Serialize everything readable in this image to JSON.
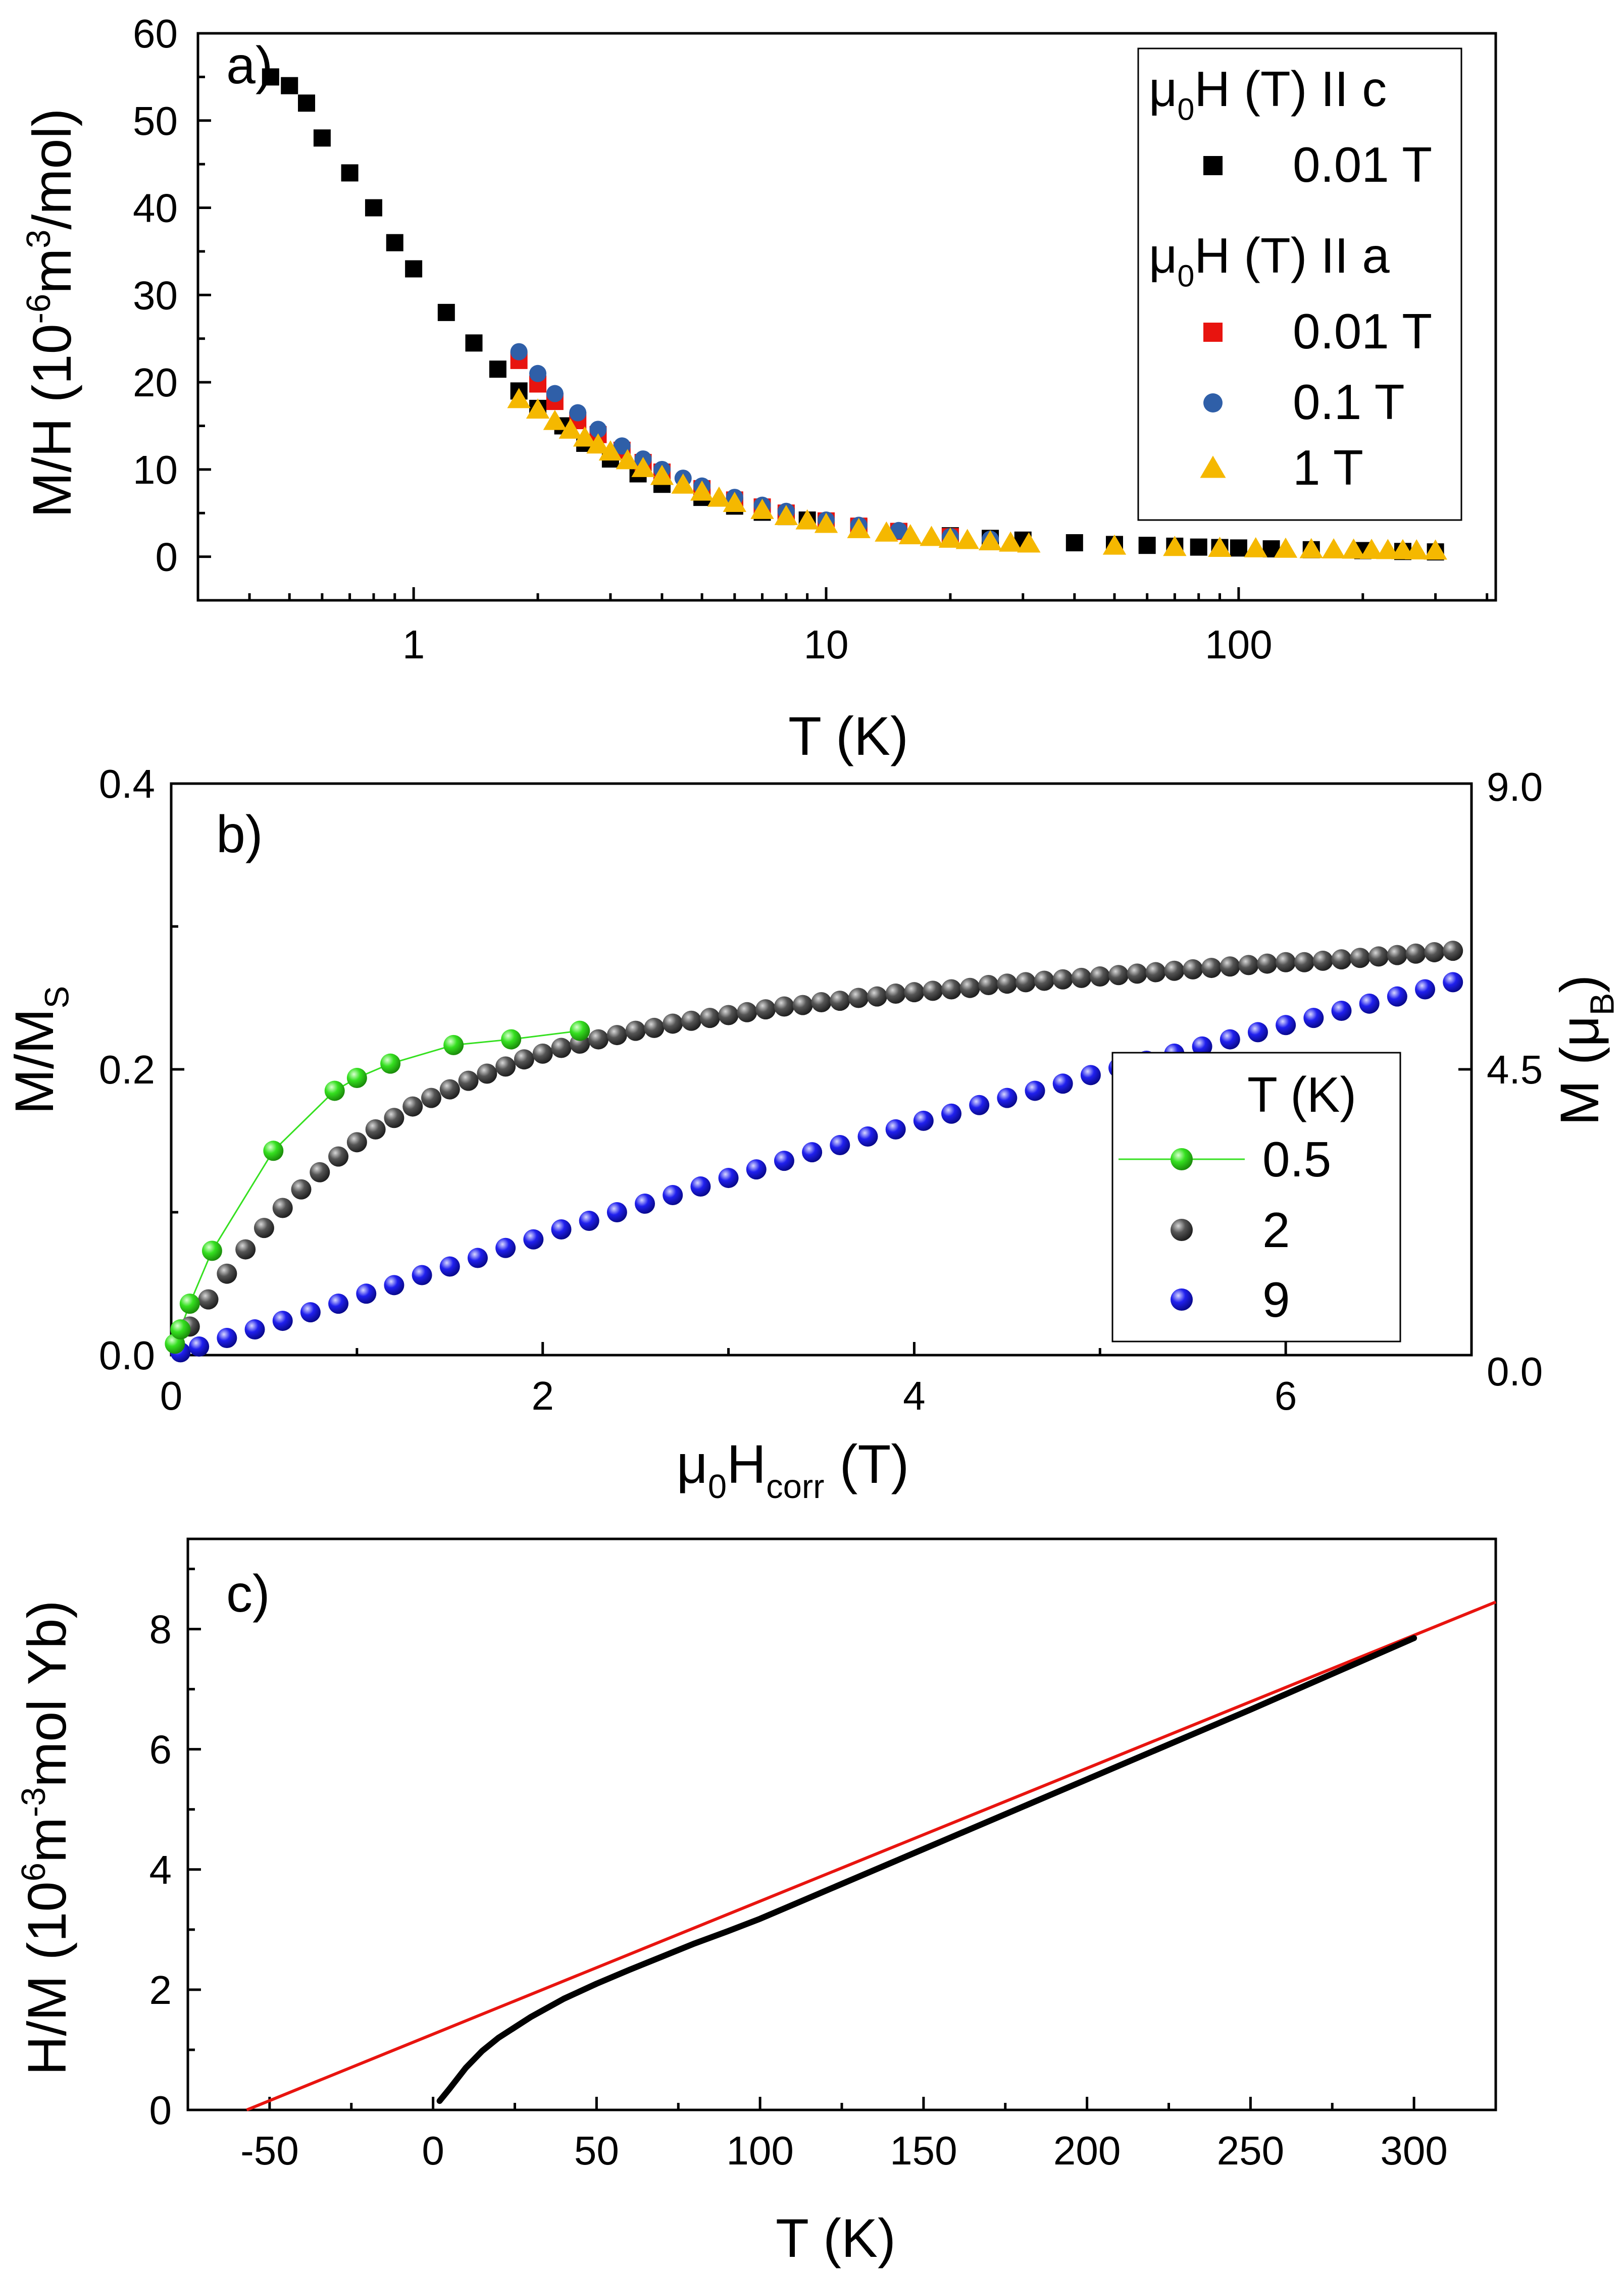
{
  "colors": {
    "black": "#000000",
    "red": "#e8140f",
    "blue": "#2f5fa8",
    "yellow": "#f5b800",
    "green": "#35e020",
    "gray": "#4a4a4a",
    "royal": "#1a1ae8",
    "fit": "#e8140f"
  },
  "chart_data": [
    {
      "panel": "a)",
      "type": "scatter",
      "xscale": "log",
      "xlabel": "T (K)",
      "ylabel": "M/H (10-6m3/mol)",
      "xlim": [
        0.3,
        420
      ],
      "ylim": [
        -5,
        60
      ],
      "xticks": [
        "1",
        "10",
        "100"
      ],
      "yticks": [
        "0",
        "10",
        "20",
        "30",
        "40",
        "50",
        "60"
      ],
      "legend": {
        "header_c": "μ0H (T) II c",
        "header_a": "μ0H (T) II a",
        "entries": [
          {
            "label": "0.01 T",
            "group": "c",
            "marker": "square",
            "color": "#000000"
          },
          {
            "label": "0.01 T",
            "group": "a",
            "marker": "square",
            "color": "#e8140f"
          },
          {
            "label": "0.1 T",
            "group": "a",
            "marker": "circle",
            "color": "#2f5fa8"
          },
          {
            "label": "1 T",
            "group": "a",
            "marker": "triangle",
            "color": "#f5b800"
          }
        ]
      },
      "series": [
        {
          "name": "c 0.01 T",
          "marker": "square",
          "color": "#000000",
          "x": [
            0.45,
            0.5,
            0.55,
            0.6,
            0.7,
            0.8,
            0.9,
            1.0,
            1.2,
            1.4,
            1.6,
            1.8,
            2.0,
            2.3,
            2.6,
            3.0,
            3.5,
            4,
            5,
            6,
            7,
            8,
            9,
            10,
            12,
            15,
            20,
            25,
            30,
            40,
            50,
            60,
            70,
            80,
            90,
            100,
            120,
            150,
            200,
            250,
            300
          ],
          "y": [
            55,
            54,
            52,
            48,
            44,
            40,
            36,
            33,
            28,
            24.5,
            21.5,
            19,
            17,
            15,
            13,
            11.2,
            9.5,
            8.3,
            6.8,
            5.8,
            5.1,
            4.6,
            4.2,
            3.9,
            3.4,
            2.9,
            2.4,
            2.1,
            1.9,
            1.6,
            1.4,
            1.3,
            1.2,
            1.1,
            1.05,
            1.0,
            0.9,
            0.8,
            0.7,
            0.6,
            0.55
          ]
        },
        {
          "name": "a 0.01 T",
          "marker": "square",
          "color": "#e8140f",
          "x": [
            1.8,
            2.0,
            2.2,
            2.5,
            2.8,
            3.2,
            3.6,
            4,
            5,
            6,
            7,
            8,
            10,
            12,
            15,
            20
          ],
          "y": [
            22.5,
            19.8,
            17.8,
            15.6,
            14,
            12.2,
            10.8,
            9.7,
            7.8,
            6.5,
            5.7,
            5.0,
            4.1,
            3.5,
            2.9,
            2.3
          ]
        },
        {
          "name": "a 0.1 T",
          "marker": "circle",
          "color": "#2f5fa8",
          "x": [
            1.8,
            2.0,
            2.2,
            2.5,
            2.8,
            3.2,
            3.6,
            4,
            4.5,
            5,
            6,
            7,
            8,
            10,
            12,
            15,
            20,
            25
          ],
          "y": [
            23.5,
            21,
            18.7,
            16.5,
            14.6,
            12.7,
            11.2,
            10,
            9,
            8.1,
            6.8,
            5.9,
            5.2,
            4.2,
            3.6,
            3.0,
            2.3,
            2.0
          ]
        },
        {
          "name": "a 1 T",
          "marker": "triangle",
          "color": "#f5b800",
          "x": [
            1.8,
            2.0,
            2.2,
            2.4,
            2.6,
            2.8,
            3.0,
            3.3,
            3.6,
            4,
            4.5,
            5,
            5.5,
            6,
            7,
            8,
            9,
            10,
            12,
            14,
            16,
            18,
            20,
            22,
            25,
            28,
            31,
            50,
            70,
            90,
            110,
            130,
            150,
            170,
            190,
            210,
            230,
            250,
            270,
            300
          ],
          "y": [
            18,
            16.8,
            15.5,
            14.5,
            13.6,
            12.8,
            12,
            11,
            10.1,
            9.2,
            8.2,
            7.4,
            6.7,
            6.1,
            5.3,
            4.6,
            4.1,
            3.7,
            3.1,
            2.7,
            2.4,
            2.2,
            2.0,
            1.85,
            1.7,
            1.55,
            1.45,
            1.2,
            1.05,
            0.95,
            0.9,
            0.85,
            0.8,
            0.78,
            0.75,
            0.72,
            0.7,
            0.68,
            0.66,
            0.64
          ]
        }
      ]
    },
    {
      "panel": "b)",
      "type": "scatter",
      "xlabel": "μ0Hcorr (T)",
      "ylabel": "M/MS",
      "y2label": "M (μB)",
      "xlim": [
        0,
        7
      ],
      "ylim": [
        0,
        0.4
      ],
      "y2lim": [
        0,
        9
      ],
      "xticks": [
        "0",
        "2",
        "4",
        "6"
      ],
      "yticks": [
        "0.0",
        "0.2",
        "0.4"
      ],
      "y2ticks": [
        "0.0",
        "4.5",
        "9.0"
      ],
      "legend": {
        "header": "T (K)",
        "entries": [
          "0.5",
          "2",
          "9"
        ]
      },
      "series": [
        {
          "name": "0.5",
          "color": "#35e020",
          "line": true,
          "x": [
            0.02,
            0.05,
            0.1,
            0.22,
            0.55,
            0.88,
            1.0,
            1.18,
            1.52,
            1.83,
            2.2
          ],
          "y": [
            0.008,
            0.018,
            0.036,
            0.073,
            0.143,
            0.185,
            0.194,
            0.204,
            0.217,
            0.221,
            0.227
          ]
        },
        {
          "name": "2",
          "color": "#4a4a4a",
          "line": false,
          "x": [
            0.1,
            0.2,
            0.3,
            0.4,
            0.5,
            0.6,
            0.7,
            0.8,
            0.9,
            1.0,
            1.1,
            1.2,
            1.3,
            1.4,
            1.5,
            1.6,
            1.7,
            1.8,
            1.9,
            2.0,
            2.1,
            2.2,
            2.3,
            2.4,
            2.5,
            2.6,
            2.7,
            2.8,
            2.9,
            3.0,
            3.1,
            3.2,
            3.3,
            3.4,
            3.5,
            3.6,
            3.7,
            3.8,
            3.9,
            4.0,
            4.1,
            4.2,
            4.3,
            4.4,
            4.5,
            4.6,
            4.7,
            4.8,
            4.9,
            5.0,
            5.1,
            5.2,
            5.3,
            5.4,
            5.5,
            5.6,
            5.7,
            5.8,
            5.9,
            6.0,
            6.1,
            6.2,
            6.3,
            6.4,
            6.5,
            6.6,
            6.7,
            6.8,
            6.9
          ],
          "y": [
            0.02,
            0.039,
            0.057,
            0.074,
            0.089,
            0.103,
            0.116,
            0.128,
            0.139,
            0.149,
            0.158,
            0.166,
            0.174,
            0.18,
            0.186,
            0.192,
            0.197,
            0.202,
            0.207,
            0.211,
            0.215,
            0.218,
            0.221,
            0.224,
            0.227,
            0.229,
            0.232,
            0.234,
            0.236,
            0.238,
            0.24,
            0.242,
            0.244,
            0.245,
            0.247,
            0.248,
            0.25,
            0.251,
            0.253,
            0.254,
            0.255,
            0.256,
            0.257,
            0.259,
            0.26,
            0.261,
            0.262,
            0.263,
            0.264,
            0.265,
            0.266,
            0.267,
            0.268,
            0.269,
            0.27,
            0.271,
            0.272,
            0.273,
            0.274,
            0.275,
            0.275,
            0.276,
            0.277,
            0.278,
            0.279,
            0.28,
            0.281,
            0.282,
            0.283
          ]
        },
        {
          "name": "9",
          "color": "#1a1ae8",
          "line": false,
          "x": [
            0.05,
            0.15,
            0.3,
            0.45,
            0.6,
            0.75,
            0.9,
            1.05,
            1.2,
            1.35,
            1.5,
            1.65,
            1.8,
            1.95,
            2.1,
            2.25,
            2.4,
            2.55,
            2.7,
            2.85,
            3.0,
            3.15,
            3.3,
            3.45,
            3.6,
            3.75,
            3.9,
            4.05,
            4.2,
            4.35,
            4.5,
            4.65,
            4.8,
            4.95,
            5.1,
            5.25,
            5.4,
            5.55,
            5.7,
            5.85,
            6.0,
            6.15,
            6.3,
            6.45,
            6.6,
            6.75,
            6.9
          ],
          "y": [
            0.002,
            0.006,
            0.012,
            0.018,
            0.024,
            0.03,
            0.036,
            0.043,
            0.049,
            0.056,
            0.062,
            0.068,
            0.075,
            0.081,
            0.088,
            0.094,
            0.1,
            0.106,
            0.112,
            0.118,
            0.124,
            0.13,
            0.136,
            0.142,
            0.147,
            0.153,
            0.158,
            0.164,
            0.169,
            0.175,
            0.18,
            0.185,
            0.19,
            0.196,
            0.201,
            0.206,
            0.211,
            0.216,
            0.221,
            0.226,
            0.231,
            0.236,
            0.241,
            0.246,
            0.251,
            0.256,
            0.261
          ]
        }
      ]
    },
    {
      "panel": "c)",
      "type": "line",
      "xlabel": "T (K)",
      "ylabel": "H/M (106m-3mol Yb)",
      "xlim": [
        -75,
        325
      ],
      "ylim": [
        0,
        9.5
      ],
      "xticks": [
        "-50",
        "0",
        "50",
        "100",
        "150",
        "200",
        "250",
        "300"
      ],
      "yticks": [
        "0",
        "2",
        "4",
        "6",
        "8"
      ],
      "series": [
        {
          "name": "data",
          "color": "#000000",
          "x": [
            2,
            5,
            10,
            15,
            20,
            30,
            40,
            50,
            60,
            70,
            80,
            90,
            100,
            150,
            200,
            250,
            300
          ],
          "y": [
            0.15,
            0.35,
            0.7,
            0.98,
            1.2,
            1.55,
            1.85,
            2.1,
            2.33,
            2.55,
            2.77,
            2.97,
            3.18,
            4.34,
            5.5,
            6.66,
            7.85
          ]
        },
        {
          "name": "Curie-Weiss fit",
          "color": "#e8140f",
          "x": [
            -57,
            325
          ],
          "y": [
            0,
            8.45
          ]
        }
      ]
    }
  ]
}
